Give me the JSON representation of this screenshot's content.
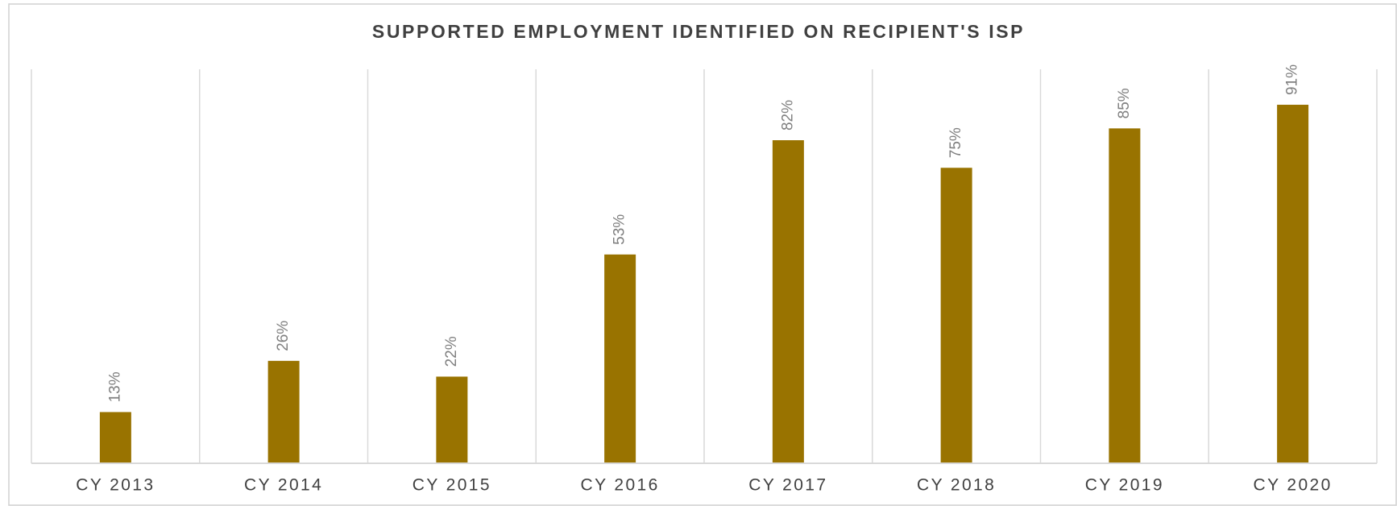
{
  "chart_data": {
    "type": "bar",
    "title": "SUPPORTED EMPLOYMENT IDENTIFIED ON RECIPIENT'S ISP",
    "categories": [
      "CY 2013",
      "CY 2014",
      "CY 2015",
      "CY 2016",
      "CY 2017",
      "CY 2018",
      "CY 2019",
      "CY 2020"
    ],
    "values": [
      13,
      26,
      22,
      53,
      82,
      75,
      85,
      91
    ],
    "value_labels": [
      "13%",
      "26%",
      "22%",
      "53%",
      "82%",
      "75%",
      "85%",
      "91%"
    ],
    "color": "#997300",
    "ylim": [
      0,
      100
    ]
  }
}
